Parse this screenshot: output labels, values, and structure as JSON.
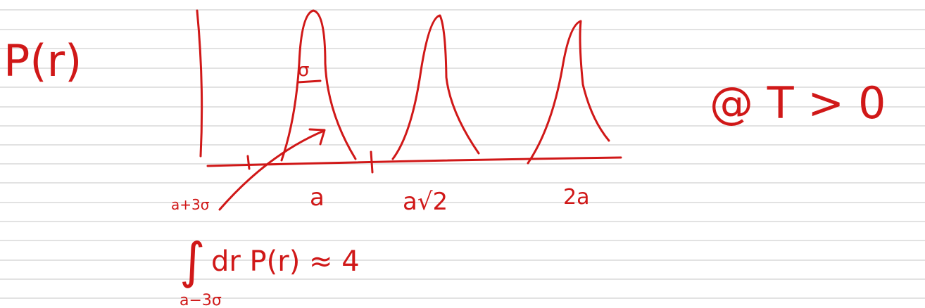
{
  "ylabel": "P(r)",
  "condition": "@ T > 0",
  "peaks": [
    "a",
    "a√2",
    "2a"
  ],
  "width_label": "σ",
  "interval": {
    "upper": "a+3σ",
    "lower": "a−3σ"
  },
  "integral": {
    "sign": "∫",
    "expression": "dr P(r) ≈ 4"
  }
}
